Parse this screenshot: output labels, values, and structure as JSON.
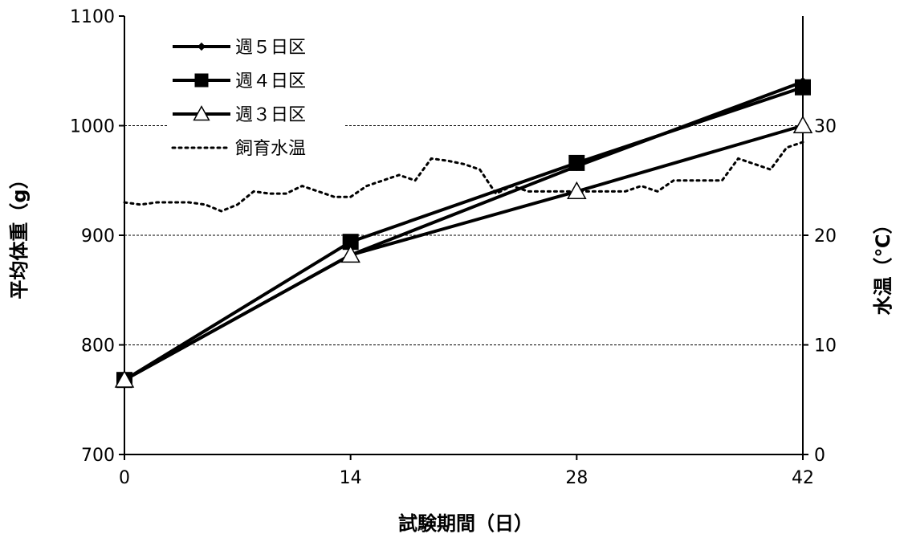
{
  "chart_data": {
    "type": "line",
    "xlabel": "試験期間（日）",
    "ylabel": "平均体重（g）",
    "y2label": "水温（℃）",
    "x_ticks": [
      0,
      14,
      28,
      42
    ],
    "xlim": [
      0,
      42
    ],
    "ylim": [
      700,
      1100
    ],
    "y_ticks": [
      700,
      800,
      900,
      1000,
      1100
    ],
    "y2lim": [
      0,
      40
    ],
    "y2_ticks": [
      0,
      10,
      20,
      30
    ],
    "grid": "horizontal dashed at 800, 900, 1000",
    "legend_position": "top-left",
    "series": [
      {
        "name": "週５日区",
        "marker": "diamond",
        "axis": "left",
        "x": [
          0,
          14,
          28,
          42
        ],
        "y": [
          768,
          882,
          963,
          1040
        ]
      },
      {
        "name": "週４日区",
        "marker": "square",
        "axis": "left",
        "x": [
          0,
          14,
          28,
          42
        ],
        "y": [
          768,
          894,
          966,
          1035
        ]
      },
      {
        "name": "週３日区",
        "marker": "triangle-open",
        "axis": "left",
        "x": [
          0,
          14,
          28,
          42
        ],
        "y": [
          768,
          882,
          940,
          1000
        ]
      },
      {
        "name": "飼育水温",
        "marker": "none",
        "style": "dotted",
        "axis": "right",
        "x": [
          0,
          1,
          2,
          3,
          4,
          5,
          6,
          7,
          8,
          9,
          10,
          11,
          12,
          13,
          14,
          15,
          16,
          17,
          18,
          19,
          20,
          21,
          22,
          23,
          24,
          25,
          26,
          27,
          28,
          29,
          30,
          31,
          32,
          33,
          34,
          35,
          36,
          37,
          38,
          39,
          40,
          41,
          42
        ],
        "y": [
          23,
          22.8,
          23,
          23,
          23,
          22.8,
          22.2,
          22.8,
          24,
          23.8,
          23.8,
          24.5,
          24,
          23.5,
          23.5,
          24.5,
          25,
          25.5,
          25,
          27,
          26.8,
          26.5,
          26,
          23.8,
          24.5,
          24,
          24,
          24,
          24,
          24,
          24,
          24,
          24.5,
          24,
          25,
          25,
          25,
          25,
          27,
          26.5,
          26,
          28,
          28.5
        ]
      }
    ]
  }
}
